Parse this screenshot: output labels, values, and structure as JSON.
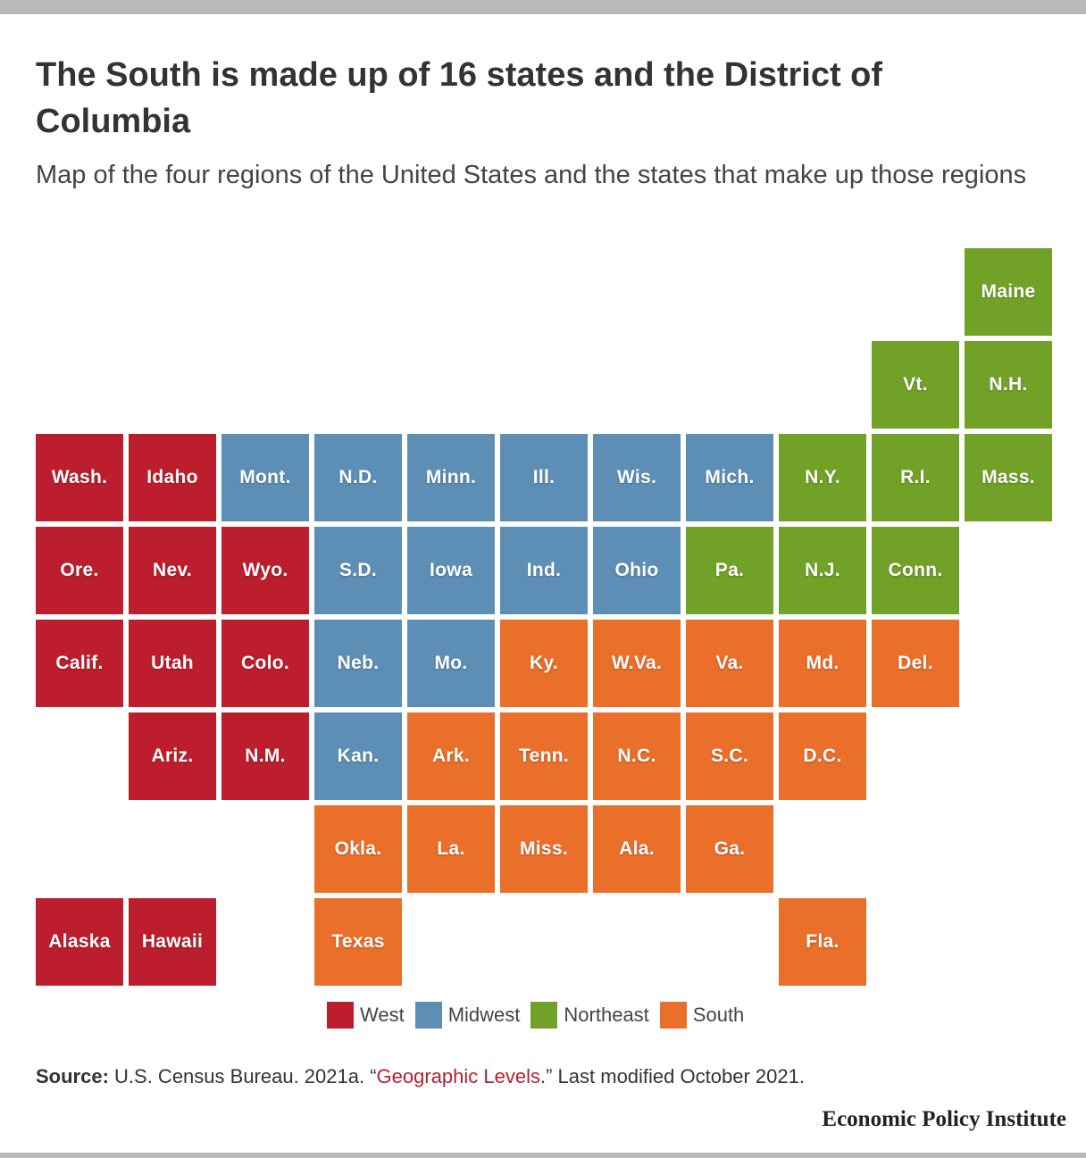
{
  "header": {
    "title": "The South is made up of 16 states and the District of Columbia",
    "subtitle": "Map of the four regions of the United States and the states that make up those regions"
  },
  "regions": {
    "West": {
      "label": "West",
      "color": "#bd1e2d"
    },
    "Midwest": {
      "label": "Midwest",
      "color": "#5d8fb6"
    },
    "Northeast": {
      "label": "Northeast",
      "color": "#72a128"
    },
    "South": {
      "label": "South",
      "color": "#ea6f2a"
    }
  },
  "legend": [
    "West",
    "Midwest",
    "Northeast",
    "South"
  ],
  "tiles": [
    {
      "label": "Maine",
      "region": "Northeast",
      "row": 0,
      "col": 10
    },
    {
      "label": "Vt.",
      "region": "Northeast",
      "row": 1,
      "col": 9
    },
    {
      "label": "N.H.",
      "region": "Northeast",
      "row": 1,
      "col": 10
    },
    {
      "label": "Wash.",
      "region": "West",
      "row": 2,
      "col": 0
    },
    {
      "label": "Idaho",
      "region": "West",
      "row": 2,
      "col": 1
    },
    {
      "label": "Mont.",
      "region": "Midwest",
      "row": 2,
      "col": 2
    },
    {
      "label": "N.D.",
      "region": "Midwest",
      "row": 2,
      "col": 3
    },
    {
      "label": "Minn.",
      "region": "Midwest",
      "row": 2,
      "col": 4
    },
    {
      "label": "Ill.",
      "region": "Midwest",
      "row": 2,
      "col": 5
    },
    {
      "label": "Wis.",
      "region": "Midwest",
      "row": 2,
      "col": 6
    },
    {
      "label": "Mich.",
      "region": "Midwest",
      "row": 2,
      "col": 7
    },
    {
      "label": "N.Y.",
      "region": "Northeast",
      "row": 2,
      "col": 8
    },
    {
      "label": "R.I.",
      "region": "Northeast",
      "row": 2,
      "col": 9
    },
    {
      "label": "Mass.",
      "region": "Northeast",
      "row": 2,
      "col": 10
    },
    {
      "label": "Ore.",
      "region": "West",
      "row": 3,
      "col": 0
    },
    {
      "label": "Nev.",
      "region": "West",
      "row": 3,
      "col": 1
    },
    {
      "label": "Wyo.",
      "region": "West",
      "row": 3,
      "col": 2
    },
    {
      "label": "S.D.",
      "region": "Midwest",
      "row": 3,
      "col": 3
    },
    {
      "label": "Iowa",
      "region": "Midwest",
      "row": 3,
      "col": 4
    },
    {
      "label": "Ind.",
      "region": "Midwest",
      "row": 3,
      "col": 5
    },
    {
      "label": "Ohio",
      "region": "Midwest",
      "row": 3,
      "col": 6
    },
    {
      "label": "Pa.",
      "region": "Northeast",
      "row": 3,
      "col": 7
    },
    {
      "label": "N.J.",
      "region": "Northeast",
      "row": 3,
      "col": 8
    },
    {
      "label": "Conn.",
      "region": "Northeast",
      "row": 3,
      "col": 9
    },
    {
      "label": "Calif.",
      "region": "West",
      "row": 4,
      "col": 0
    },
    {
      "label": "Utah",
      "region": "West",
      "row": 4,
      "col": 1
    },
    {
      "label": "Colo.",
      "region": "West",
      "row": 4,
      "col": 2
    },
    {
      "label": "Neb.",
      "region": "Midwest",
      "row": 4,
      "col": 3
    },
    {
      "label": "Mo.",
      "region": "Midwest",
      "row": 4,
      "col": 4
    },
    {
      "label": "Ky.",
      "region": "South",
      "row": 4,
      "col": 5
    },
    {
      "label": "W.Va.",
      "region": "South",
      "row": 4,
      "col": 6
    },
    {
      "label": "Va.",
      "region": "South",
      "row": 4,
      "col": 7
    },
    {
      "label": "Md.",
      "region": "South",
      "row": 4,
      "col": 8
    },
    {
      "label": "Del.",
      "region": "South",
      "row": 4,
      "col": 9
    },
    {
      "label": "Ariz.",
      "region": "West",
      "row": 5,
      "col": 1
    },
    {
      "label": "N.M.",
      "region": "West",
      "row": 5,
      "col": 2
    },
    {
      "label": "Kan.",
      "region": "Midwest",
      "row": 5,
      "col": 3
    },
    {
      "label": "Ark.",
      "region": "South",
      "row": 5,
      "col": 4
    },
    {
      "label": "Tenn.",
      "region": "South",
      "row": 5,
      "col": 5
    },
    {
      "label": "N.C.",
      "region": "South",
      "row": 5,
      "col": 6
    },
    {
      "label": "S.C.",
      "region": "South",
      "row": 5,
      "col": 7
    },
    {
      "label": "D.C.",
      "region": "South",
      "row": 5,
      "col": 8
    },
    {
      "label": "Okla.",
      "region": "South",
      "row": 6,
      "col": 3
    },
    {
      "label": "La.",
      "region": "South",
      "row": 6,
      "col": 4
    },
    {
      "label": "Miss.",
      "region": "South",
      "row": 6,
      "col": 5
    },
    {
      "label": "Ala.",
      "region": "South",
      "row": 6,
      "col": 6
    },
    {
      "label": "Ga.",
      "region": "South",
      "row": 6,
      "col": 7
    },
    {
      "label": "Alaska",
      "region": "West",
      "row": 7,
      "col": 0
    },
    {
      "label": "Hawaii",
      "region": "West",
      "row": 7,
      "col": 1
    },
    {
      "label": "Texas",
      "region": "South",
      "row": 7,
      "col": 3
    },
    {
      "label": "Fla.",
      "region": "South",
      "row": 7,
      "col": 8
    }
  ],
  "source": {
    "prefix": "Source:",
    "text_before": " U.S. Census Bureau. 2021a. “",
    "link_text": "Geographic Levels",
    "text_after": ".” Last modified October 2021."
  },
  "brand": "Economic Policy Institute"
}
